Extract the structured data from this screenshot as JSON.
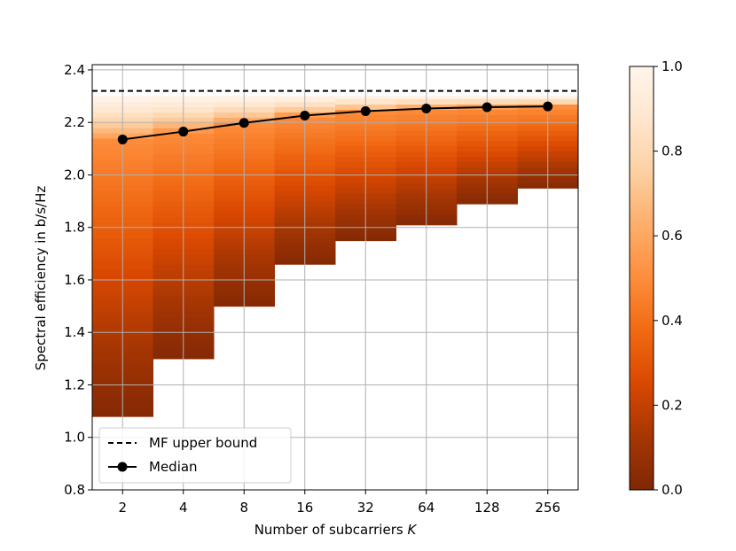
{
  "chart_data": {
    "type": "heatmap",
    "title": "",
    "xlabel": "Number of subcarriers K",
    "xlabel_main": "Number of subcarriers ",
    "xlabel_var": "K",
    "ylabel": "Spectral efficiency in b/s/Hz",
    "categories": [
      "2",
      "4",
      "8",
      "16",
      "32",
      "64",
      "128",
      "256"
    ],
    "ylim": [
      0.8,
      2.42
    ],
    "y_ticks": [
      "0.8",
      "1.0",
      "1.2",
      "1.4",
      "1.6",
      "1.8",
      "2.0",
      "2.2",
      "2.4"
    ],
    "grid": true,
    "cdf_columns": [
      {
        "k": "2",
        "min": 1.08,
        "max": 2.3
      },
      {
        "k": "4",
        "min": 1.3,
        "max": 2.3
      },
      {
        "k": "8",
        "min": 1.5,
        "max": 2.3
      },
      {
        "k": "16",
        "min": 1.66,
        "max": 2.3
      },
      {
        "k": "32",
        "min": 1.75,
        "max": 2.3
      },
      {
        "k": "64",
        "min": 1.81,
        "max": 2.3
      },
      {
        "k": "128",
        "min": 1.89,
        "max": 2.3
      },
      {
        "k": "256",
        "min": 1.95,
        "max": 2.3
      }
    ],
    "series": [
      {
        "name": "MF upper bound",
        "style": "dashed",
        "values": [
          2.32,
          2.32,
          2.32,
          2.32,
          2.32,
          2.32,
          2.32,
          2.32
        ]
      },
      {
        "name": "Median",
        "style": "line-marker",
        "values": [
          2.135,
          2.165,
          2.198,
          2.226,
          2.243,
          2.253,
          2.258,
          2.261
        ]
      }
    ],
    "legend": {
      "placement": "lower-left"
    },
    "colorbar": {
      "colormap": "Oranges_r",
      "range": [
        0.0,
        1.0
      ],
      "ticks": [
        "0.0",
        "0.2",
        "0.4",
        "0.6",
        "0.8",
        "1.0"
      ],
      "colors": [
        "#7f2704",
        "#a63603",
        "#d94801",
        "#f16913",
        "#fd8d3c",
        "#fdae6b",
        "#fdd0a2",
        "#fee6ce",
        "#fff5eb"
      ]
    }
  }
}
